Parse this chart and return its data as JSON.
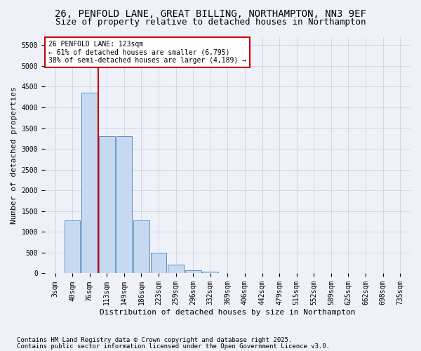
{
  "title_line1": "26, PENFOLD LANE, GREAT BILLING, NORTHAMPTON, NN3 9EF",
  "title_line2": "Size of property relative to detached houses in Northampton",
  "xlabel": "Distribution of detached houses by size in Northampton",
  "ylabel": "Number of detached properties",
  "bar_color": "#c7d9f0",
  "bar_edge_color": "#5a8fc3",
  "bins": [
    "3sqm",
    "40sqm",
    "76sqm",
    "113sqm",
    "149sqm",
    "186sqm",
    "223sqm",
    "259sqm",
    "296sqm",
    "332sqm",
    "369sqm",
    "406sqm",
    "442sqm",
    "479sqm",
    "515sqm",
    "552sqm",
    "589sqm",
    "625sqm",
    "662sqm",
    "698sqm",
    "735sqm"
  ],
  "values": [
    0,
    1270,
    4360,
    3310,
    3300,
    1280,
    500,
    210,
    80,
    50,
    0,
    0,
    0,
    0,
    0,
    0,
    0,
    0,
    0,
    0,
    0
  ],
  "ylim": [
    0,
    5700
  ],
  "yticks": [
    0,
    500,
    1000,
    1500,
    2000,
    2500,
    3000,
    3500,
    4000,
    4500,
    5000,
    5500
  ],
  "annotation_text": "26 PENFOLD LANE: 123sqm\n← 61% of detached houses are smaller (6,795)\n38% of semi-detached houses are larger (4,189) →",
  "vline_pos": 2.5,
  "annotation_box_color": "#ffffff",
  "annotation_box_edge": "#cc0000",
  "grid_color": "#d0d8e8",
  "background_color": "#eef2f8",
  "footer_line1": "Contains HM Land Registry data © Crown copyright and database right 2025.",
  "footer_line2": "Contains public sector information licensed under the Open Government Licence v3.0.",
  "title_fontsize": 10,
  "subtitle_fontsize": 9,
  "axis_label_fontsize": 8,
  "tick_fontsize": 7,
  "footer_fontsize": 6.5
}
